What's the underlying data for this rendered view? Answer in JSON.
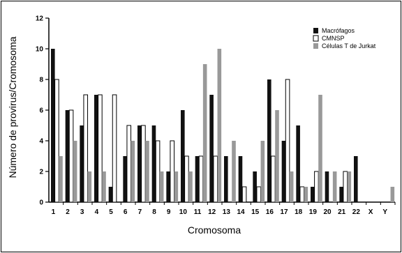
{
  "chart_data": {
    "type": "bar",
    "xlabel": "Cromosoma",
    "ylabel": "Número de provirus/Cromosoma",
    "ylim": [
      0,
      12
    ],
    "yticks": [
      0,
      2,
      4,
      6,
      8,
      10,
      12
    ],
    "grid": false,
    "legend_position": "top-right",
    "categories": [
      "1",
      "2",
      "3",
      "4",
      "5",
      "6",
      "7",
      "8",
      "9",
      "10",
      "11",
      "12",
      "13",
      "14",
      "15",
      "16",
      "17",
      "18",
      "19",
      "20",
      "21",
      "22",
      "X",
      "Y"
    ],
    "series": [
      {
        "name": "Macrófagos",
        "color": "#111111",
        "fill": "solid",
        "values": [
          10,
          6,
          5,
          7,
          1,
          3,
          5,
          5,
          2,
          6,
          3,
          7,
          3,
          3,
          2,
          8,
          4,
          5,
          1,
          2,
          1,
          3,
          0,
          0
        ]
      },
      {
        "name": "CMNSP",
        "color": "#ffffff",
        "fill": "outline",
        "values": [
          8,
          6,
          7,
          7,
          7,
          5,
          5,
          4,
          4,
          3,
          3,
          3,
          0,
          1,
          1,
          3,
          8,
          1,
          2,
          0,
          2,
          0,
          0,
          0
        ]
      },
      {
        "name": "Células T de Jurkat",
        "color": "#999999",
        "fill": "solid",
        "values": [
          3,
          4,
          2,
          2,
          0,
          4,
          4,
          2,
          2,
          2,
          9,
          10,
          4,
          0,
          4,
          6,
          2,
          1,
          7,
          2,
          2,
          0,
          0,
          1
        ]
      }
    ]
  }
}
